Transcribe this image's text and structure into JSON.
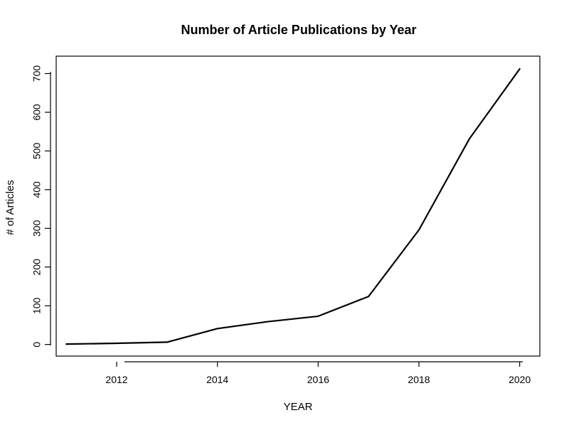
{
  "chart_data": {
    "type": "line",
    "title": "Number of Article Publications by Year",
    "xlabel": "YEAR",
    "ylabel": "# of Articles",
    "x": [
      2011,
      2012,
      2013,
      2014,
      2015,
      2016,
      2017,
      2018,
      2019,
      2020
    ],
    "series": [
      {
        "values": [
          1,
          3,
          6,
          41,
          59,
          73,
          124,
          296,
          531,
          712
        ]
      }
    ],
    "xticks": [
      2012,
      2014,
      2016,
      2018,
      2020
    ],
    "yticks": [
      0,
      100,
      200,
      300,
      400,
      500,
      600,
      700
    ],
    "xlim": [
      2010.8,
      2020.4
    ],
    "ylim": [
      -30,
      745
    ],
    "grid": false,
    "legend": "none",
    "colors": {
      "line": "#000000",
      "axis": "#000000",
      "background": "#ffffff"
    }
  }
}
